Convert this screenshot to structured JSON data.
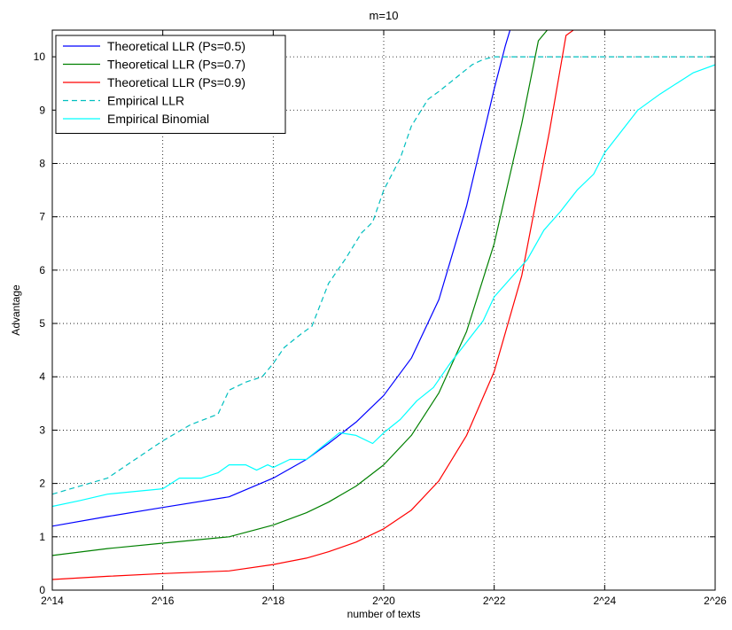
{
  "chart_data": {
    "type": "line",
    "title": "m=10",
    "xlabel": "number of texts",
    "ylabel": "Advantage",
    "x_scale": "log2",
    "xlim": [
      14,
      26
    ],
    "ylim": [
      0,
      10.5
    ],
    "x_ticks": [
      14,
      16,
      18,
      20,
      22,
      24,
      26
    ],
    "x_tick_labels": [
      "2^14",
      "2^16",
      "2^18",
      "2^20",
      "2^22",
      "2^24",
      "2^26"
    ],
    "y_ticks": [
      0,
      1,
      2,
      3,
      4,
      5,
      6,
      7,
      8,
      9,
      10
    ],
    "y_tick_labels": [
      "0",
      "1",
      "2",
      "3",
      "4",
      "5",
      "6",
      "7",
      "8",
      "9",
      "10"
    ],
    "grid": true,
    "legend_position": "top-left",
    "series": [
      {
        "name": "Theoretical LLR (Ps=0.5)",
        "color": "#0000ff",
        "style": "solid",
        "x": [
          14,
          15,
          16,
          17.2,
          18,
          18.6,
          19,
          19.5,
          20,
          20.5,
          21,
          21.5,
          22,
          22.2,
          22.3
        ],
        "y": [
          1.2,
          1.38,
          1.55,
          1.75,
          2.1,
          2.45,
          2.75,
          3.15,
          3.65,
          4.35,
          5.45,
          7.2,
          9.4,
          10.2,
          10.55
        ]
      },
      {
        "name": "Theoretical LLR (Ps=0.7)",
        "color": "#008000",
        "style": "solid",
        "x": [
          14,
          15,
          16,
          17.2,
          18,
          18.6,
          19,
          19.5,
          20,
          20.5,
          21,
          21.5,
          22,
          22.5,
          22.8,
          23.0
        ],
        "y": [
          0.65,
          0.78,
          0.88,
          1.0,
          1.22,
          1.45,
          1.65,
          1.95,
          2.35,
          2.9,
          3.7,
          4.85,
          6.5,
          8.75,
          10.3,
          10.55
        ]
      },
      {
        "name": "Theoretical LLR (Ps=0.9)",
        "color": "#ff0000",
        "style": "solid",
        "x": [
          14,
          15,
          16,
          17.2,
          18,
          18.6,
          19,
          19.5,
          20,
          20.5,
          21,
          21.5,
          22,
          22.5,
          23,
          23.3,
          23.5
        ],
        "y": [
          0.2,
          0.26,
          0.31,
          0.36,
          0.48,
          0.6,
          0.72,
          0.9,
          1.15,
          1.5,
          2.05,
          2.9,
          4.1,
          5.9,
          8.6,
          10.4,
          10.55
        ]
      },
      {
        "name": "Empirical LLR",
        "color": "#00bfbf",
        "style": "dashed",
        "x": [
          14,
          14.5,
          15,
          15.5,
          16,
          16.5,
          17,
          17.2,
          17.5,
          17.8,
          18,
          18.2,
          18.5,
          18.7,
          19,
          19.3,
          19.6,
          19.8,
          20,
          20.3,
          20.5,
          20.8,
          21,
          21.3,
          21.6,
          21.8,
          22,
          23,
          24,
          25,
          26
        ],
        "y": [
          1.8,
          1.95,
          2.1,
          2.45,
          2.8,
          3.1,
          3.3,
          3.75,
          3.9,
          4.0,
          4.25,
          4.55,
          4.8,
          4.95,
          5.75,
          6.2,
          6.7,
          6.9,
          7.5,
          8.1,
          8.7,
          9.2,
          9.35,
          9.6,
          9.85,
          9.95,
          10.0,
          10.0,
          10.0,
          10.0,
          10.0
        ]
      },
      {
        "name": "Empirical Binomial",
        "color": "#00ffff",
        "style": "solid",
        "x": [
          14,
          14.5,
          15,
          15.5,
          16,
          16.3,
          16.7,
          17,
          17.2,
          17.5,
          17.7,
          17.9,
          18,
          18.3,
          18.6,
          18.9,
          19.2,
          19.5,
          19.8,
          20,
          20.3,
          20.6,
          20.9,
          21.2,
          21.5,
          21.8,
          22,
          22.3,
          22.6,
          22.9,
          23.2,
          23.5,
          23.8,
          24,
          24.3,
          24.6,
          25,
          25.3,
          25.6,
          26
        ],
        "y": [
          1.57,
          1.68,
          1.8,
          1.85,
          1.9,
          2.1,
          2.1,
          2.2,
          2.35,
          2.35,
          2.25,
          2.35,
          2.3,
          2.45,
          2.45,
          2.7,
          2.95,
          2.9,
          2.75,
          2.95,
          3.2,
          3.55,
          3.8,
          4.25,
          4.65,
          5.05,
          5.5,
          5.85,
          6.2,
          6.75,
          7.1,
          7.5,
          7.8,
          8.2,
          8.6,
          9.0,
          9.3,
          9.5,
          9.7,
          9.85
        ]
      }
    ]
  }
}
